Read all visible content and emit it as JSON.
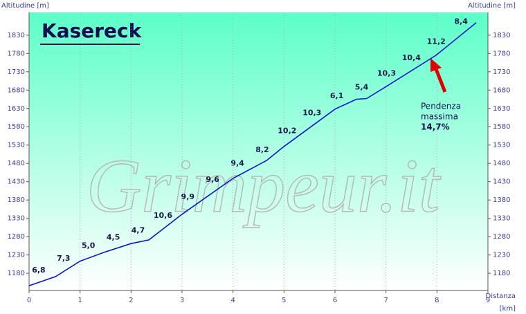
{
  "chart_data": {
    "type": "line",
    "title": "Kasereck",
    "y_label": "Altitudine [m]",
    "y2_label": "Altitudine [m]",
    "x_label": "Distanza",
    "x_unit": "[km]",
    "watermark": "Grimpeur.it",
    "annotation": [
      "Pendenza",
      "massima",
      "14,7%"
    ],
    "x": [
      0,
      0.52,
      1.0,
      1.47,
      2.0,
      2.35,
      3.0,
      4.0,
      4.66,
      5.0,
      6.0,
      6.42,
      6.62,
      7.03,
      7.98,
      8.77
    ],
    "values": [
      1146,
      1171,
      1213,
      1237,
      1261,
      1271,
      1341,
      1439,
      1488,
      1526,
      1628,
      1655,
      1657,
      1692,
      1775,
      1864
    ],
    "color": "#0a14c8",
    "segment_labels": [
      "6,8",
      "7,3",
      "5,0",
      "4,5",
      "4,7",
      "10,6",
      "9,9",
      "9,6",
      "9,4",
      "8,2",
      "10,2",
      "10,3",
      "6,1",
      "5,4",
      "10,3",
      "10,4",
      "11,2",
      "8,4"
    ],
    "xlim": [
      0,
      9
    ],
    "xticks": [
      0,
      1,
      2,
      3,
      4,
      5,
      6,
      7,
      8,
      9
    ],
    "ylim": [
      1133,
      1892
    ],
    "yticks": [
      1180,
      1230,
      1280,
      1330,
      1380,
      1430,
      1480,
      1530,
      1580,
      1630,
      1680,
      1730,
      1780,
      1830
    ],
    "grid": true
  }
}
